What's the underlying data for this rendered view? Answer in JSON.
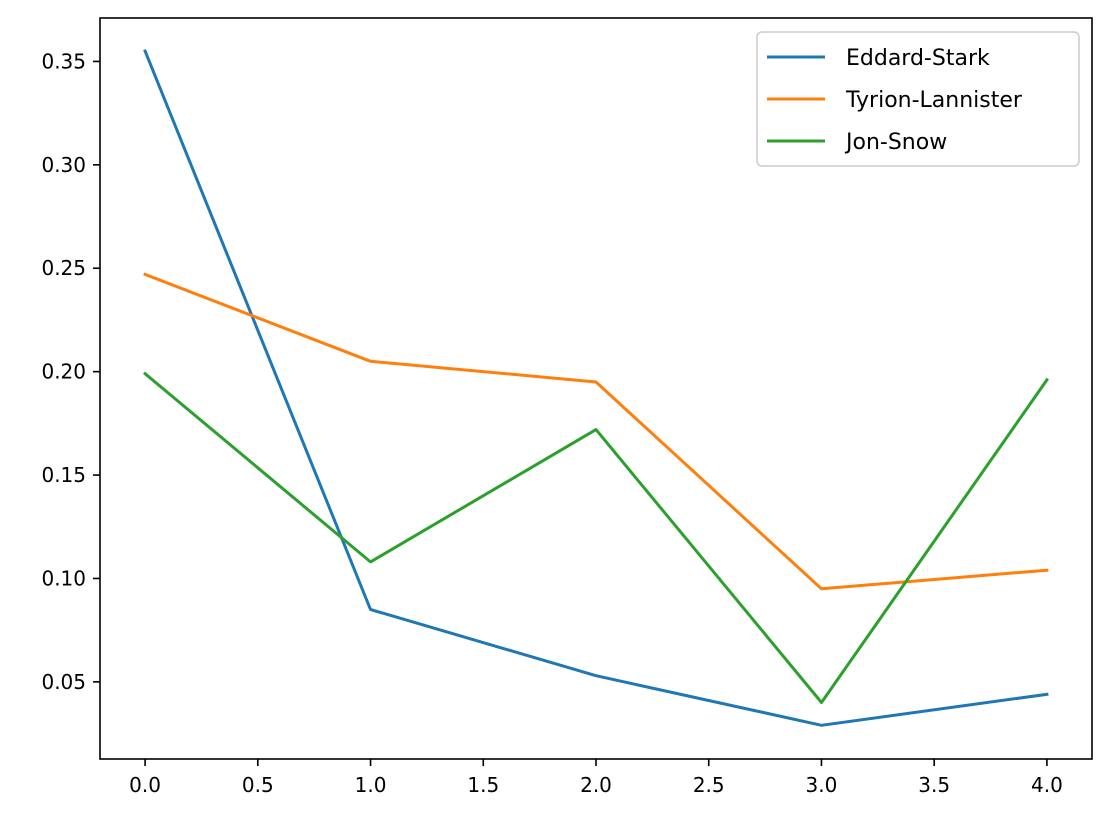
{
  "chart_data": {
    "type": "line",
    "x": [
      0,
      1,
      2,
      3,
      4
    ],
    "series": [
      {
        "name": "Eddard-Stark",
        "color": "#1f77b4",
        "values": [
          0.355,
          0.085,
          0.053,
          0.029,
          0.044
        ]
      },
      {
        "name": "Tyrion-Lannister",
        "color": "#ff7f0e",
        "values": [
          0.247,
          0.205,
          0.195,
          0.095,
          0.104
        ]
      },
      {
        "name": "Jon-Snow",
        "color": "#2ca02c",
        "values": [
          0.199,
          0.108,
          0.172,
          0.04,
          0.196
        ]
      }
    ],
    "xlim": [
      -0.2,
      4.2
    ],
    "ylim": [
      0.0127,
      0.371
    ],
    "xticks": [
      0.0,
      0.5,
      1.0,
      1.5,
      2.0,
      2.5,
      3.0,
      3.5,
      4.0
    ],
    "xtick_labels": [
      "0.0",
      "0.5",
      "1.0",
      "1.5",
      "2.0",
      "2.5",
      "3.0",
      "3.5",
      "4.0"
    ],
    "yticks": [
      0.05,
      0.1,
      0.15,
      0.2,
      0.25,
      0.3,
      0.35
    ],
    "ytick_labels": [
      "0.05",
      "0.10",
      "0.15",
      "0.20",
      "0.25",
      "0.30",
      "0.35"
    ],
    "title": "",
    "xlabel": "",
    "ylabel": "",
    "grid": false,
    "legend_position": "top-right"
  }
}
